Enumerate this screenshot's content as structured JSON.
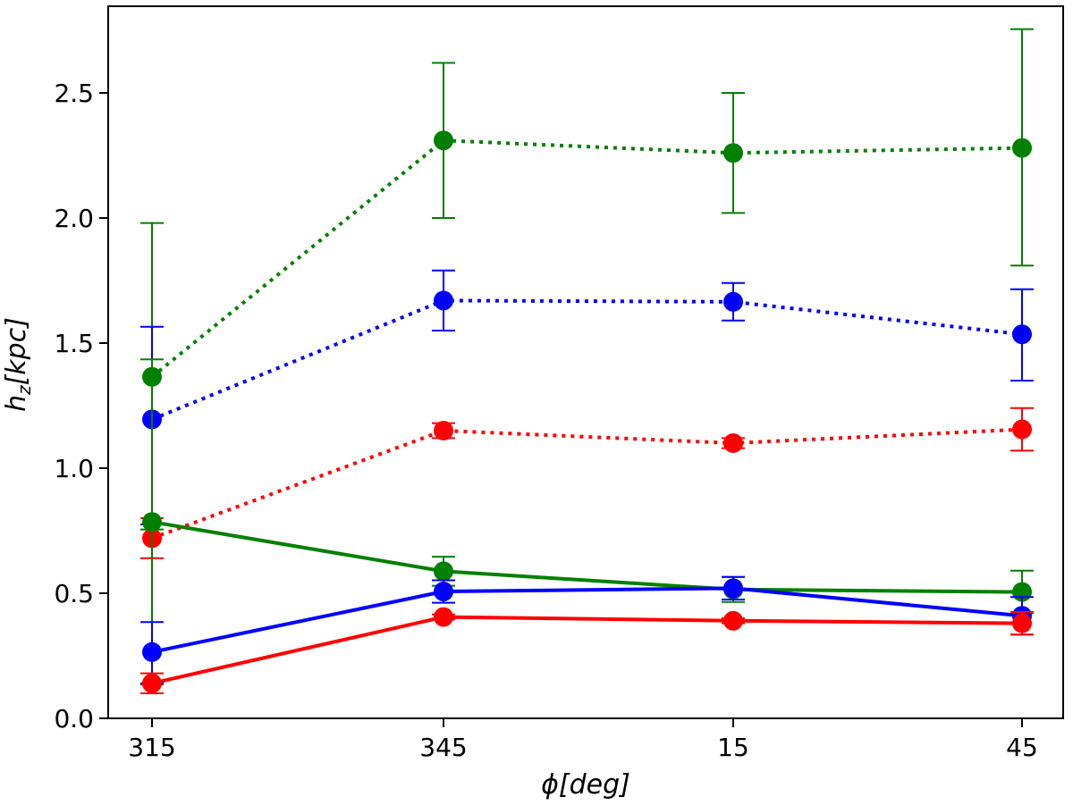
{
  "chart_data": {
    "type": "line",
    "title": "",
    "xlabel": "ϕ[deg]",
    "ylabel": "h_z[kpc]",
    "ylabel_main": "h",
    "ylabel_sub": "z",
    "ylabel_rest": "[kpc]",
    "xlabel_main": "ϕ",
    "xlabel_rest": "[deg]",
    "categories": [
      "315",
      "345",
      "15",
      "45"
    ],
    "ylim": [
      0,
      2.85
    ],
    "yticks": [
      0.0,
      0.5,
      1.0,
      1.5,
      2.0,
      2.5
    ],
    "ytick_labels": [
      "0.0",
      "0.5",
      "1.0",
      "1.5",
      "2.0",
      "2.5"
    ],
    "grid": false,
    "series": [
      {
        "name": "green-dotted",
        "color": "#008000",
        "style": "dotted",
        "values": [
          1.365,
          2.31,
          2.26,
          2.28
        ],
        "err_low": [
          0.61,
          0.31,
          0.24,
          0.47
        ],
        "err_high": [
          0.615,
          0.31,
          0.24,
          0.475
        ]
      },
      {
        "name": "blue-dotted",
        "color": "#0000ff",
        "style": "dotted",
        "values": [
          1.195,
          1.67,
          1.665,
          1.535
        ],
        "err_low": [
          0.42,
          0.12,
          0.075,
          0.185
        ],
        "err_high": [
          0.37,
          0.12,
          0.075,
          0.18
        ]
      },
      {
        "name": "red-dotted",
        "color": "#ff0000",
        "style": "dotted",
        "values": [
          0.72,
          1.15,
          1.1,
          1.155
        ],
        "err_low": [
          0.08,
          0.03,
          0.02,
          0.085
        ],
        "err_high": [
          0.08,
          0.03,
          0.02,
          0.085
        ]
      },
      {
        "name": "green-solid",
        "color": "#008000",
        "style": "solid",
        "values": [
          0.785,
          0.588,
          0.515,
          0.505
        ],
        "err_low": [
          0.65,
          0.058,
          0.05,
          0.085
        ],
        "err_high": [
          0.65,
          0.058,
          0.05,
          0.085
        ]
      },
      {
        "name": "blue-solid",
        "color": "#0000ff",
        "style": "solid",
        "values": [
          0.265,
          0.507,
          0.52,
          0.41
        ],
        "err_low": [
          0.125,
          0.045,
          0.045,
          0.075
        ],
        "err_high": [
          0.12,
          0.045,
          0.045,
          0.075
        ]
      },
      {
        "name": "red-solid",
        "color": "#ff0000",
        "style": "solid",
        "values": [
          0.14,
          0.405,
          0.39,
          0.38
        ],
        "err_low": [
          0.04,
          0.01,
          0.01,
          0.045
        ],
        "err_high": [
          0.04,
          0.01,
          0.01,
          0.045
        ]
      }
    ]
  }
}
